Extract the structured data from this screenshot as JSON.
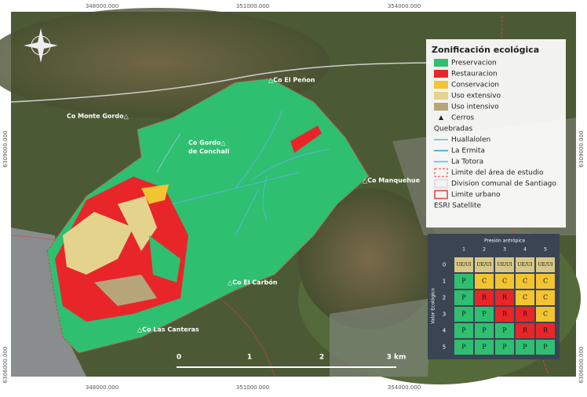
{
  "frame": {
    "top": [
      "348000.000",
      "351000.000",
      "354000.000"
    ],
    "bottom": [
      "348000.000",
      "351000.000",
      "354000.000"
    ],
    "left": [
      "6309000.000",
      "6306000.000"
    ],
    "right": [
      "6309000.000",
      "6306000.000"
    ]
  },
  "places": [
    "△Co El Peñon",
    "Co Monte Gordo△",
    "Co Gordo△",
    "de Conchali",
    "△Co Manquehue",
    "△Co El Carbón",
    "△Co Las Canteras"
  ],
  "scale": [
    "0",
    "1",
    "2",
    "3 km"
  ],
  "legend": {
    "title": "Zonificación ecológica",
    "zones": [
      {
        "name": "Preservacion",
        "color": "#2fbf71"
      },
      {
        "name": "Restauracion",
        "color": "#e8262a"
      },
      {
        "name": "Conservacion",
        "color": "#f2c431"
      },
      {
        "name": "Uso extensivo",
        "color": "#e3d38c"
      },
      {
        "name": "Uso intensivo",
        "color": "#b7a57a"
      }
    ],
    "cerros": "Cerros",
    "quebradas_title": "Quebradas",
    "quebradas": [
      {
        "name": "Huallalolen",
        "color": "#8ec6d0"
      },
      {
        "name": "La Ermita",
        "color": "#5ab4dc"
      },
      {
        "name": "La Totora",
        "color": "#6fd3ea"
      }
    ],
    "boundaries": [
      "Limite del área de estudio",
      "Division comunal de Santiago",
      "Limite urbano"
    ],
    "basemap": "ESRI Satellite"
  },
  "matrix": {
    "col_title": "Presión antrópica",
    "row_title": "Valor Ecológico",
    "columns": [
      "1",
      "2",
      "3",
      "4",
      "5"
    ],
    "cell_colors": {
      "UE/UI": "#d8c886",
      "P": "#2fbf71",
      "C": "#f2c431",
      "R": "#e8262a"
    },
    "rows": [
      {
        "label": "0",
        "cells": [
          "UE/UI",
          "UE/UI",
          "UE/UI",
          "UE/UI",
          "UE/UI"
        ]
      },
      {
        "label": "1",
        "cells": [
          "P",
          "C",
          "C",
          "C",
          "C"
        ]
      },
      {
        "label": "2",
        "cells": [
          "P",
          "R",
          "R",
          "C",
          "C"
        ]
      },
      {
        "label": "3",
        "cells": [
          "P",
          "P",
          "R",
          "R",
          "C"
        ]
      },
      {
        "label": "4",
        "cells": [
          "P",
          "P",
          "P",
          "R",
          "R"
        ]
      },
      {
        "label": "5",
        "cells": [
          "P",
          "P",
          "P",
          "P",
          "P"
        ]
      }
    ]
  }
}
